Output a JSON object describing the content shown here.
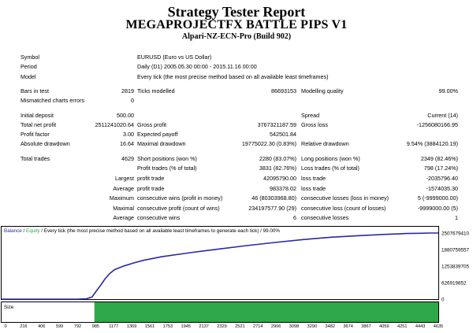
{
  "header": {
    "title": "Strategy Tester Report",
    "subtitle": "MEGAPROJECTFX BATTLE PIPS V1",
    "build": "Alpari-NZ-ECN-Pro (Build 902)"
  },
  "info": {
    "symbol_label": "Symbol",
    "symbol_value": "EURUSD (Euro vs US Dollar)",
    "period_label": "Period",
    "period_value": "Daily (D1) 2005.05.30 00:00 - 2015.11.16 00:00",
    "model_label": "Model",
    "model_value": "Every tick (the most precise method based on all available least timeframes)"
  },
  "test": {
    "bars_label": "Bars in test",
    "bars_value": "2819",
    "ticks_label": "Ticks modelled",
    "ticks_value": "86693153",
    "quality_label": "Modelling quality",
    "quality_value": "99.00%",
    "mismatch_label": "Mismatched charts errors",
    "mismatch_value": "0"
  },
  "results": {
    "deposit_label": "Initial deposit",
    "deposit_value": "500.00",
    "spread_label": "Spread",
    "spread_value": "Current (14)",
    "netprofit_label": "Total net profit",
    "netprofit_value": "2511241020.64",
    "grossprofit_label": "Gross profit",
    "grossprofit_value": "3767321187.59",
    "grossloss_label": "Gross loss",
    "grossloss_value": "-1256080166.95",
    "pf_label": "Profit factor",
    "pf_value": "3.00",
    "payoff_label": "Expected payoff",
    "payoff_value": "542501.84",
    "absdd_label": "Absolute drawdown",
    "absdd_value": "16.64",
    "maxdd_label": "Maximal drawdown",
    "maxdd_value": "19775022.30 (0.83%)",
    "reldd_label": "Relative drawdown",
    "reldd_value": "9.54% (3884120.19)"
  },
  "trades": {
    "total_label": "Total trades",
    "total_value": "4629",
    "short_label": "Short positions (won %)",
    "short_value": "2280 (83.07%)",
    "long_label": "Long positions (won %)",
    "long_value": "2349 (82.46%)",
    "profit_trades_label": "Profit trades (% of total)",
    "profit_trades_value": "3831 (82.76%)",
    "loss_trades_label": "Loss trades (% of total)",
    "loss_trades_value": "798 (17.24%)",
    "largest_label": "Largest",
    "largest_pt_label": "profit trade",
    "largest_pt_value": "42095790.00",
    "largest_lt_label": "loss trade",
    "largest_lt_value": "-2035796.40",
    "average_label": "Average",
    "average_pt_label": "profit trade",
    "average_pt_value": "983378.02",
    "average_lt_label": "loss trade",
    "average_lt_value": "-1574035.30",
    "maximum_label": "Maximum",
    "max_cw_label": "consecutive wins (profit in money)",
    "max_cw_value": "46 (80303968.80)",
    "max_cl_label": "consecutive losses (loss in money)",
    "max_cl_value": "5 (-9999000.00)",
    "maximal_label": "Maximal",
    "maximal_cp_label": "consecutive profit (count of wins)",
    "maximal_cp_value": "234197577.90 (29)",
    "maximal_cl_label": "consecutive loss (count of losses)",
    "maximal_cl_value": "-9999000.00 (5)",
    "avg2_label": "Average",
    "avg_cw_label": "consecutive wins",
    "avg_cw_value": "6",
    "avg_cl_label": "consecutive losses",
    "avg_cl_value": "1"
  },
  "chart_data": {
    "type": "line",
    "legend_balance": "Balance",
    "legend_sep1": " / ",
    "legend_equity": "Equity",
    "legend_rest": " / Every tick (the most precise method based on all available least timeframes to generate each tick) / 99.00%",
    "y_ticks": [
      "2507679410",
      "1880759557",
      "1253839705",
      "626919852",
      "0"
    ],
    "x_ticks": [
      "0",
      "216",
      "406",
      "599",
      "792",
      "985",
      "1177",
      "1369",
      "1561",
      "1753",
      "1945",
      "2137",
      "2329",
      "2521",
      "2714",
      "2906",
      "3098",
      "3290",
      "3482",
      "3674",
      "3867",
      "4059",
      "4251",
      "4443",
      "4635"
    ],
    "series": [
      {
        "color": "#2a2aa0",
        "x": [
          0,
          800,
          900,
          960,
          1000,
          1050,
          1100,
          1150,
          1200,
          1300,
          1400,
          1500,
          1700,
          2000,
          2300,
          2600,
          2900,
          3200,
          3500,
          3800,
          4100,
          4300,
          4450,
          4550,
          4635
        ],
        "values": [
          0,
          0,
          15000000,
          80000000,
          280000000,
          520000000,
          780000000,
          980000000,
          1120000000,
          1260000000,
          1370000000,
          1470000000,
          1610000000,
          1760000000,
          1900000000,
          2030000000,
          2150000000,
          2260000000,
          2350000000,
          2410000000,
          2460000000,
          2490000000,
          2500000000,
          2507000000,
          2507679410
        ]
      }
    ],
    "xlim": [
      0,
      4635
    ],
    "ylim": [
      0,
      2507679410
    ],
    "size_panel_label": "Size",
    "size_color": "#2ea84a",
    "size_start_x": 985
  }
}
